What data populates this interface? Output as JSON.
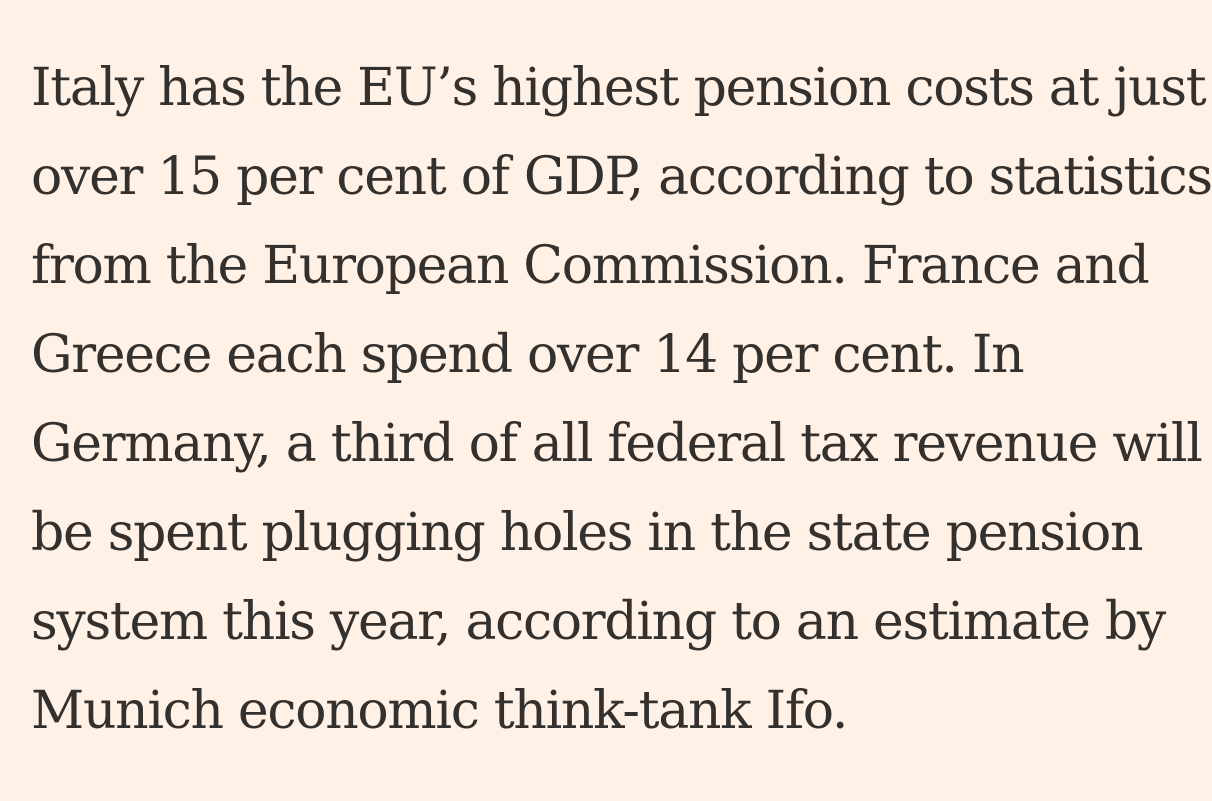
{
  "article": {
    "lines": [
      "Italy has the EU’s highest pension costs at just",
      "over 15 per cent of GDP, according to statistics",
      "from the European Commission. France and",
      "Greece each spend over 14 per cent. In",
      "Germany, a third of all federal tax revenue will",
      "be spent plugging holes in the state pension",
      "system this year, according to an estimate by",
      "Munich economic think-tank Ifo."
    ]
  },
  "colors": {
    "background": "#fff1e5",
    "text": "#33302e"
  }
}
